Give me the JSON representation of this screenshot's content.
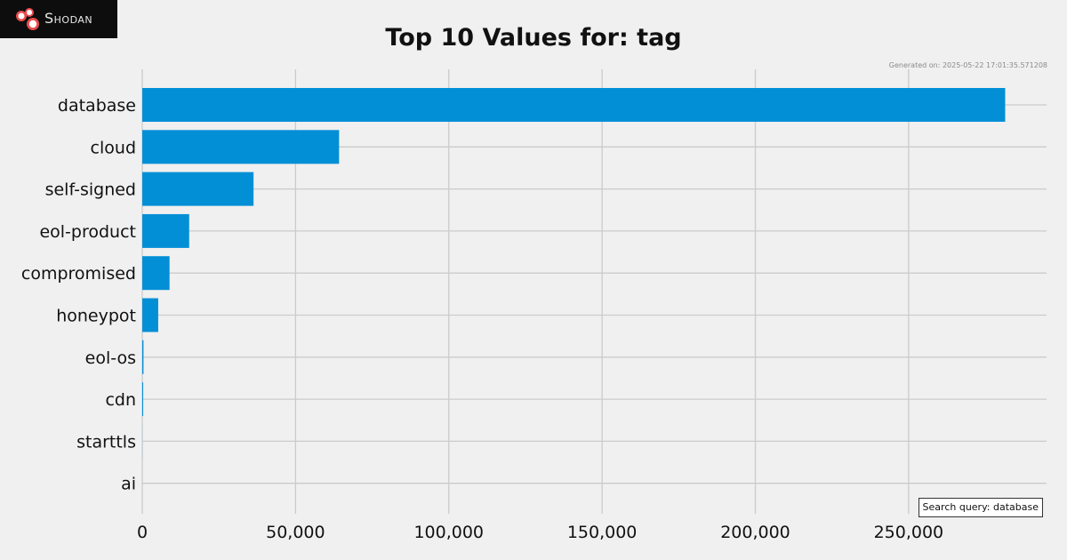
{
  "brand": {
    "name": "Shodan",
    "logo_icon": "shodan-logo-icon"
  },
  "header": {
    "title": "Top 10 Values for: tag",
    "generated": "Generated on: 2025-05-22 17:01:35.571208"
  },
  "search_query": "Search query: database",
  "colors": {
    "bar": "#038fd6",
    "grid": "#cbcbcb",
    "background": "#f0f0f0"
  },
  "chart_data": {
    "type": "bar",
    "orientation": "horizontal",
    "title": "Top 10 Values for: tag",
    "categories": [
      "database",
      "cloud",
      "self-signed",
      "eol-product",
      "compromised",
      "honeypot",
      "eol-os",
      "cdn",
      "starttls",
      "ai"
    ],
    "values": [
      281500,
      64200,
      36300,
      15300,
      8900,
      5200,
      400,
      300,
      20,
      5
    ],
    "xticks": [
      0,
      50000,
      100000,
      150000,
      200000,
      250000
    ],
    "xtick_labels": [
      "0",
      "50,000",
      "100,000",
      "150,000",
      "200,000",
      "250,000"
    ],
    "xlim": [
      0,
      295000
    ],
    "grid": true,
    "xlabel": "",
    "ylabel": ""
  }
}
